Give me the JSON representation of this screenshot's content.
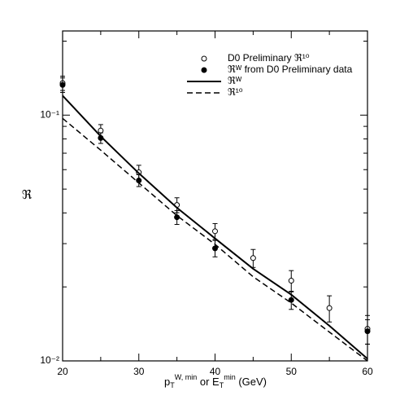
{
  "chart_data": {
    "type": "scatter",
    "xlabel": [
      "p",
      "T",
      "W, min",
      " or  E",
      "T",
      "min",
      "  (GeV)"
    ],
    "ylabel": "ℜ",
    "x": [
      20,
      25,
      30,
      35,
      40,
      45,
      50,
      55,
      60
    ],
    "series": [
      {
        "name": "D0 Preliminary ℜ¹⁰",
        "kind": "open",
        "color": "#000000",
        "values": [
          0.135,
          0.0865,
          0.0585,
          0.0431,
          0.0337,
          0.0262,
          0.0212,
          0.0164,
          0.0135
        ],
        "errors": [
          0.009,
          0.005,
          0.004,
          0.003,
          0.0025,
          0.0022,
          0.0021,
          0.002,
          0.0018
        ]
      },
      {
        "name": "ℜᵂ from D0 Preliminary data",
        "kind": "filled",
        "color": "#000000",
        "values": [
          0.1327,
          0.0807,
          0.0542,
          0.0384,
          0.0287,
          null,
          0.0177,
          null,
          0.0132
        ],
        "errors": [
          0.009,
          0.004,
          0.003,
          0.0025,
          0.0022,
          null,
          0.0015,
          null,
          0.0015
        ]
      },
      {
        "name": "ℜᵂ",
        "kind": "solid",
        "color": "#000000",
        "values": [
          0.12,
          0.082,
          0.058,
          0.042,
          0.0315,
          0.0237,
          0.0186,
          0.0139,
          0.0102
        ]
      },
      {
        "name": "ℜ¹⁰",
        "kind": "dashed",
        "color": "#000000",
        "values": [
          0.097,
          0.072,
          0.053,
          0.039,
          0.0298,
          0.022,
          0.0172,
          0.0131,
          0.01
        ]
      }
    ],
    "xlim": [
      20,
      60
    ],
    "xticks": [
      20,
      30,
      40,
      50,
      60
    ],
    "xminorticks": [
      25,
      35,
      45,
      55
    ],
    "ylim": [
      0.01,
      0.22
    ],
    "log_y": true,
    "yticks": [
      {
        "value": 0.01,
        "label": "10⁻²"
      },
      {
        "value": 0.1,
        "label": "10⁻¹"
      }
    ],
    "yminorticks": [
      0.02,
      0.03,
      0.04,
      0.05,
      0.06,
      0.07,
      0.08,
      0.09,
      0.2
    ],
    "legend": "top-right"
  }
}
